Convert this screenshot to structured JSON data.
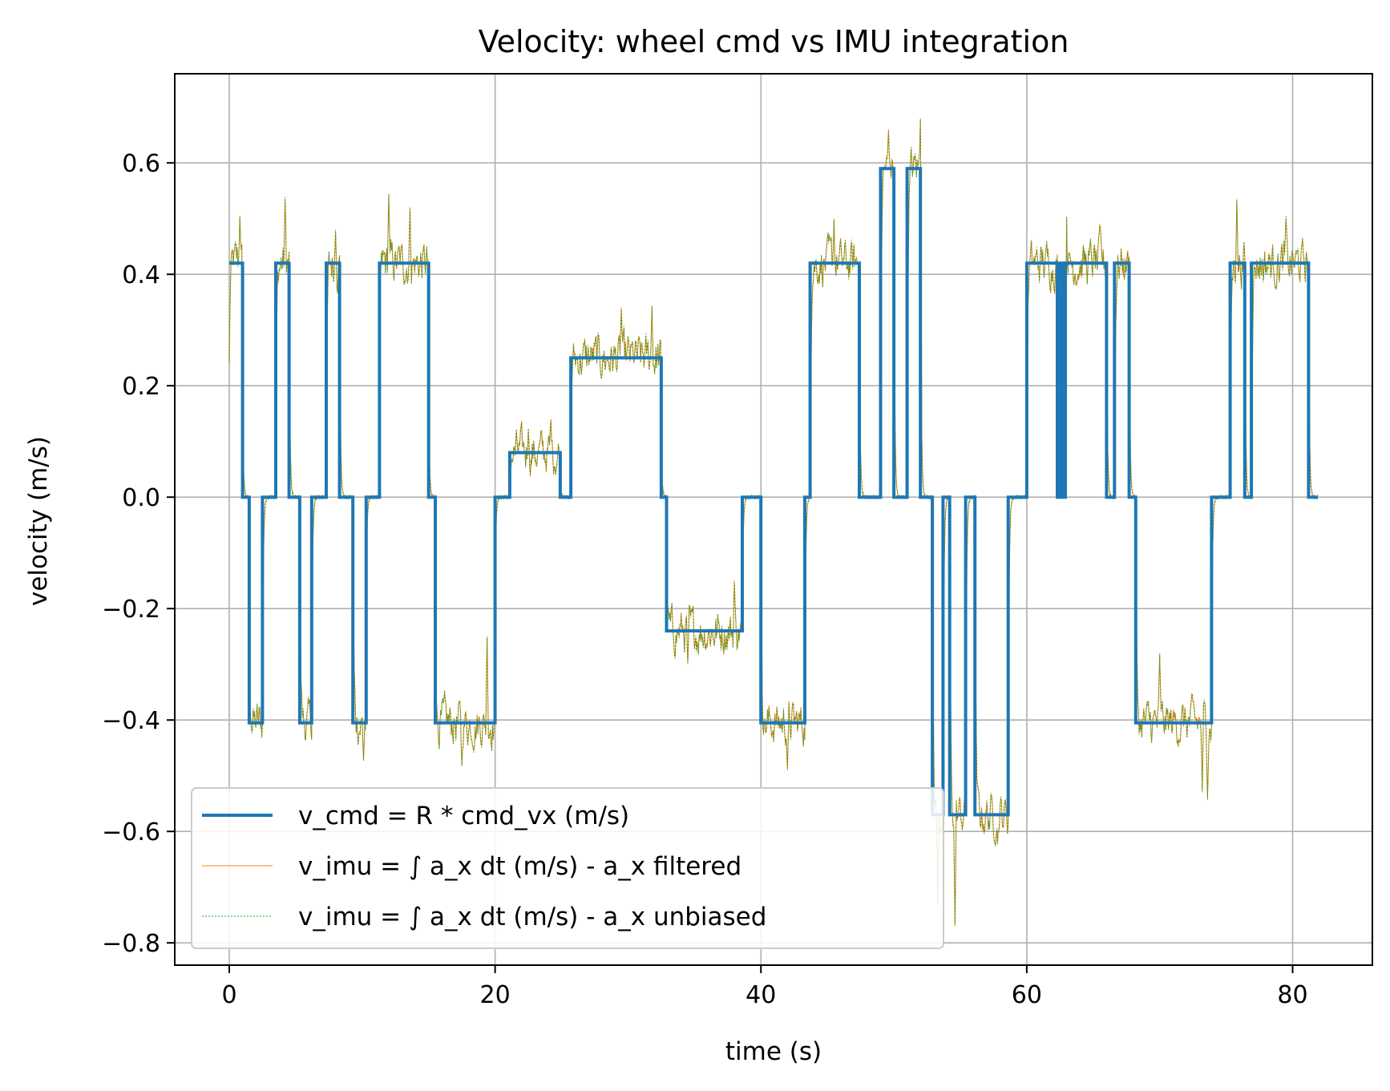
{
  "chart_data": {
    "type": "line",
    "title": "Velocity: wheel cmd vs IMU integration",
    "xlabel": "time (s)",
    "ylabel": "velocity (m/s)",
    "xlim": [
      -4.1,
      86.0
    ],
    "ylim": [
      -0.84,
      0.76
    ],
    "xticks": [
      0,
      20,
      40,
      60,
      80
    ],
    "yticks": [
      -0.8,
      -0.6,
      -0.4,
      -0.2,
      0.0,
      0.2,
      0.4,
      0.6
    ],
    "xtick_labels": [
      "0",
      "20",
      "40",
      "60",
      "80"
    ],
    "ytick_labels": [
      "−0.8",
      "−0.6",
      "−0.4",
      "−0.2",
      "0.0",
      "0.2",
      "0.4",
      "0.6"
    ],
    "grid": true,
    "legend_position": "lower-left",
    "series": [
      {
        "name": "v_cmd = R * cmd_vx (m/s)",
        "color": "#1f77b4",
        "style": "solid",
        "steps": [
          [
            0.0,
            0.42
          ],
          [
            1.0,
            0.0
          ],
          [
            1.5,
            -0.405
          ],
          [
            2.5,
            0.0
          ],
          [
            3.5,
            0.42
          ],
          [
            4.5,
            0.0
          ],
          [
            5.3,
            -0.405
          ],
          [
            6.2,
            0.0
          ],
          [
            7.3,
            0.42
          ],
          [
            8.3,
            0.0
          ],
          [
            9.3,
            -0.405
          ],
          [
            10.3,
            0.0
          ],
          [
            11.3,
            0.42
          ],
          [
            15.0,
            0.0
          ],
          [
            15.5,
            -0.405
          ],
          [
            20.0,
            0.0
          ],
          [
            21.1,
            0.08
          ],
          [
            24.9,
            0.0
          ],
          [
            25.7,
            0.25
          ],
          [
            32.5,
            0.0
          ],
          [
            32.9,
            -0.24
          ],
          [
            38.6,
            0.0
          ],
          [
            40.0,
            -0.405
          ],
          [
            43.3,
            0.0
          ],
          [
            43.7,
            0.42
          ],
          [
            47.4,
            0.0
          ],
          [
            49.0,
            0.59
          ],
          [
            50.0,
            0.0
          ],
          [
            51.0,
            0.59
          ],
          [
            52.0,
            0.0
          ],
          [
            52.9,
            -0.57
          ],
          [
            53.7,
            0.0
          ],
          [
            54.2,
            -0.57
          ],
          [
            55.4,
            0.0
          ],
          [
            56.1,
            -0.57
          ],
          [
            58.6,
            0.0
          ],
          [
            60.0,
            0.42
          ],
          [
            62.3,
            0.0
          ],
          [
            62.5,
            0.42
          ],
          [
            62.7,
            0.0
          ],
          [
            62.9,
            0.42
          ],
          [
            66.0,
            0.0
          ],
          [
            66.6,
            0.42
          ],
          [
            67.7,
            0.0
          ],
          [
            68.2,
            -0.405
          ],
          [
            73.9,
            0.0
          ],
          [
            75.3,
            0.42
          ],
          [
            76.4,
            0.0
          ],
          [
            76.9,
            0.42
          ],
          [
            81.2,
            0.0
          ],
          [
            81.9,
            0.0
          ]
        ]
      },
      {
        "name": "v_imu = ∫ a_x dt (m/s) - a_x filtered",
        "color": "#ff7f0e",
        "style": "solid",
        "note_noise_amplitude": 0.045
      },
      {
        "name": "v_imu = ∫ a_x dt (m/s) - a_x unbiased",
        "color": "#2ca02c",
        "style": "dashed",
        "note_noise_amplitude": 0.045
      }
    ],
    "imu_peaks": [
      [
        0.8,
        0.505
      ],
      [
        4.2,
        0.535
      ],
      [
        8.0,
        0.48
      ],
      [
        10.1,
        -0.47
      ],
      [
        12.0,
        0.54
      ],
      [
        13.6,
        0.52
      ],
      [
        17.5,
        -0.48
      ],
      [
        19.4,
        -0.25
      ],
      [
        22.5,
        0.12
      ],
      [
        24.2,
        0.14
      ],
      [
        29.5,
        0.34
      ],
      [
        31.8,
        0.34
      ],
      [
        34.5,
        -0.3
      ],
      [
        38.0,
        -0.15
      ],
      [
        42.0,
        -0.49
      ],
      [
        45.5,
        0.5
      ],
      [
        49.6,
        0.66
      ],
      [
        52.0,
        0.68
      ],
      [
        53.3,
        -0.73
      ],
      [
        54.6,
        -0.77
      ],
      [
        57.8,
        -0.62
      ],
      [
        63.0,
        0.5
      ],
      [
        65.5,
        0.49
      ],
      [
        70.0,
        -0.28
      ],
      [
        73.2,
        -0.53
      ],
      [
        73.6,
        -0.54
      ],
      [
        75.8,
        0.535
      ],
      [
        79.5,
        0.5
      ]
    ]
  }
}
